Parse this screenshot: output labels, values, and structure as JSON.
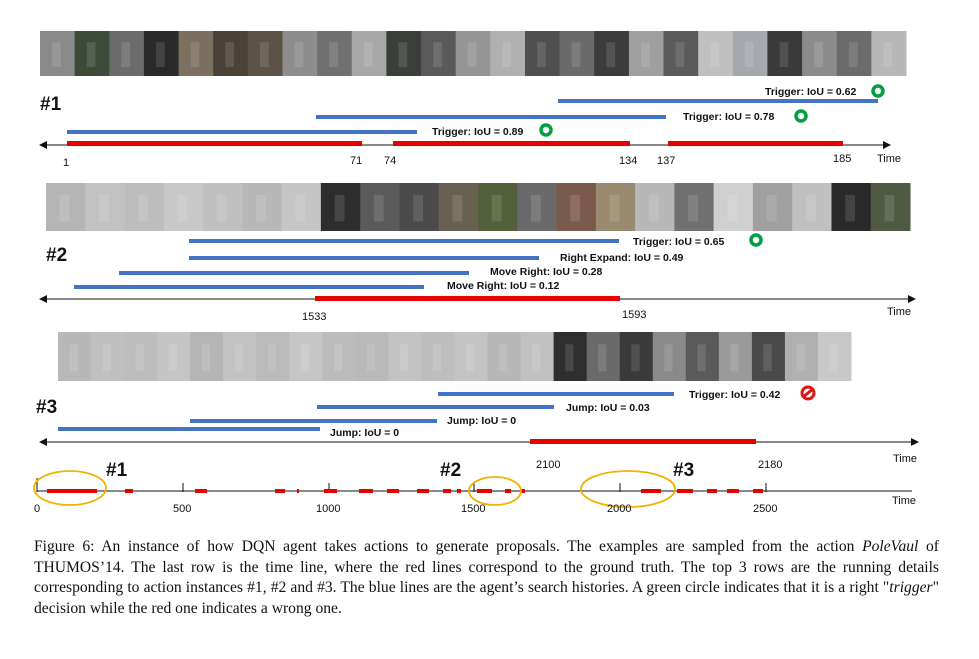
{
  "figure": {
    "rows": [
      {
        "label": "#1",
        "strip_tones": [
          "#8a8a8a",
          "#3d4a3a",
          "#6b6b6b",
          "#2a2a2a",
          "#7c7060",
          "#4a4238",
          "#5c5248",
          "#8d8d8d",
          "#707070",
          "#a8a8a8",
          "#3a3f3a",
          "#5a5a5a",
          "#959595",
          "#b0b0b0",
          "#4f4f4f",
          "#6a6a6a",
          "#3c3c3c",
          "#9f9f9f",
          "#5b5b5b",
          "#c0c0c0",
          "#a5a8ad",
          "#3a3a3a",
          "#8c8c8c",
          "#6b6b6b",
          "#b8b8b8"
        ],
        "search_lines": [
          {
            "label": "Trigger: IoU = 0.62",
            "decision": "correct"
          },
          {
            "label": "Trigger: IoU = 0.78",
            "decision": "correct"
          },
          {
            "label": "Trigger: IoU = 0.89",
            "decision": "correct"
          }
        ],
        "ticks": [
          "1",
          "71",
          "74",
          "134",
          "137",
          "185"
        ],
        "time_label": "Time"
      },
      {
        "label": "#2",
        "strip_tones": [
          "#b5b5b5",
          "#c2c2c2",
          "#bdbdbd",
          "#c8c8c8",
          "#c0c0c0",
          "#b8b8b8",
          "#c5c5c5",
          "#2d2d2d",
          "#5a5a5a",
          "#4b4b4b",
          "#686050",
          "#54603c",
          "#6a6a6a",
          "#7a5a4a",
          "#9a8a70",
          "#b8b8b8",
          "#707070",
          "#d0d0d0",
          "#a0a0a0",
          "#c0c0c0",
          "#2a2a2a",
          "#505a40"
        ],
        "search_lines": [
          {
            "label": "Trigger: IoU = 0.65",
            "decision": "correct"
          },
          {
            "label": "Right Expand: IoU = 0.49",
            "decision": "none"
          },
          {
            "label": "Move Right: IoU = 0.28",
            "decision": "none"
          },
          {
            "label": "Move Right: IoU = 0.12",
            "decision": "none"
          }
        ],
        "ticks": [
          "1533",
          "1593"
        ],
        "time_label": "Time"
      },
      {
        "label": "#3",
        "strip_tones": [
          "#b8b8b8",
          "#c0c0c0",
          "#bdbdbd",
          "#c5c5c5",
          "#b5b5b5",
          "#c2c2c2",
          "#bababa",
          "#c6c6c6",
          "#bcbcbc",
          "#b9b9b9",
          "#c3c3c3",
          "#bebebe",
          "#c4c4c4",
          "#b7b7b7",
          "#c1c1c1",
          "#2e2e2e",
          "#6a6a6a",
          "#3a3a3a",
          "#8a8a8a",
          "#5a5a5a",
          "#9a9a9a",
          "#4a4a4a",
          "#b0b0b0",
          "#c8c8c8"
        ],
        "search_lines": [
          {
            "label": "Trigger: IoU = 0.42",
            "decision": "wrong"
          },
          {
            "label": "Jump: IoU = 0.03",
            "decision": "none"
          },
          {
            "label": "Jump: IoU = 0",
            "decision": "none"
          },
          {
            "label": "Jump: IoU = 0",
            "decision": "none"
          }
        ],
        "ticks": [
          "2100",
          "2180"
        ],
        "time_label": "Time"
      }
    ],
    "timeline": {
      "markers": [
        "#1",
        "#2",
        "#3"
      ],
      "ticks": [
        "0",
        "500",
        "1000",
        "1500",
        "2000",
        "2500"
      ],
      "ground_truth_segments": [
        [
          10,
          60
        ],
        [
          88,
          96
        ],
        [
          158,
          170
        ],
        [
          238,
          248
        ],
        [
          260,
          262
        ],
        [
          287,
          300
        ],
        [
          322,
          336
        ],
        [
          350,
          362
        ],
        [
          380,
          392
        ],
        [
          406,
          414
        ],
        [
          420,
          424
        ],
        [
          440,
          455
        ],
        [
          468,
          474
        ],
        [
          484,
          488
        ],
        [
          604,
          624
        ],
        [
          640,
          656
        ],
        [
          670,
          680
        ],
        [
          690,
          702
        ],
        [
          716,
          726
        ]
      ],
      "time_label": "Time"
    },
    "colors": {
      "search_line": "#4472c4",
      "ground_truth": "#e60000",
      "correct_marker": "#00a040",
      "wrong_marker": "#e21515",
      "highlight_ellipse": "#f2b200"
    }
  },
  "caption": {
    "lead": "Figure 6: An instance of how DQN agent takes actions to generate proposals. The examples are sampled from the action ",
    "action_name": "PoleVaul",
    "mid": " of THUMOS’14. The last row is the time line, where the red lines correspond to the ground truth. The top 3 rows are the running details corresponding to action instances #1, #2 and #3. The blue lines are the agent’s search histories. A green circle indicates that it is a right \"",
    "trigger_word": "trigger",
    "tail": "\" decision while the red one indicates a wrong one."
  }
}
